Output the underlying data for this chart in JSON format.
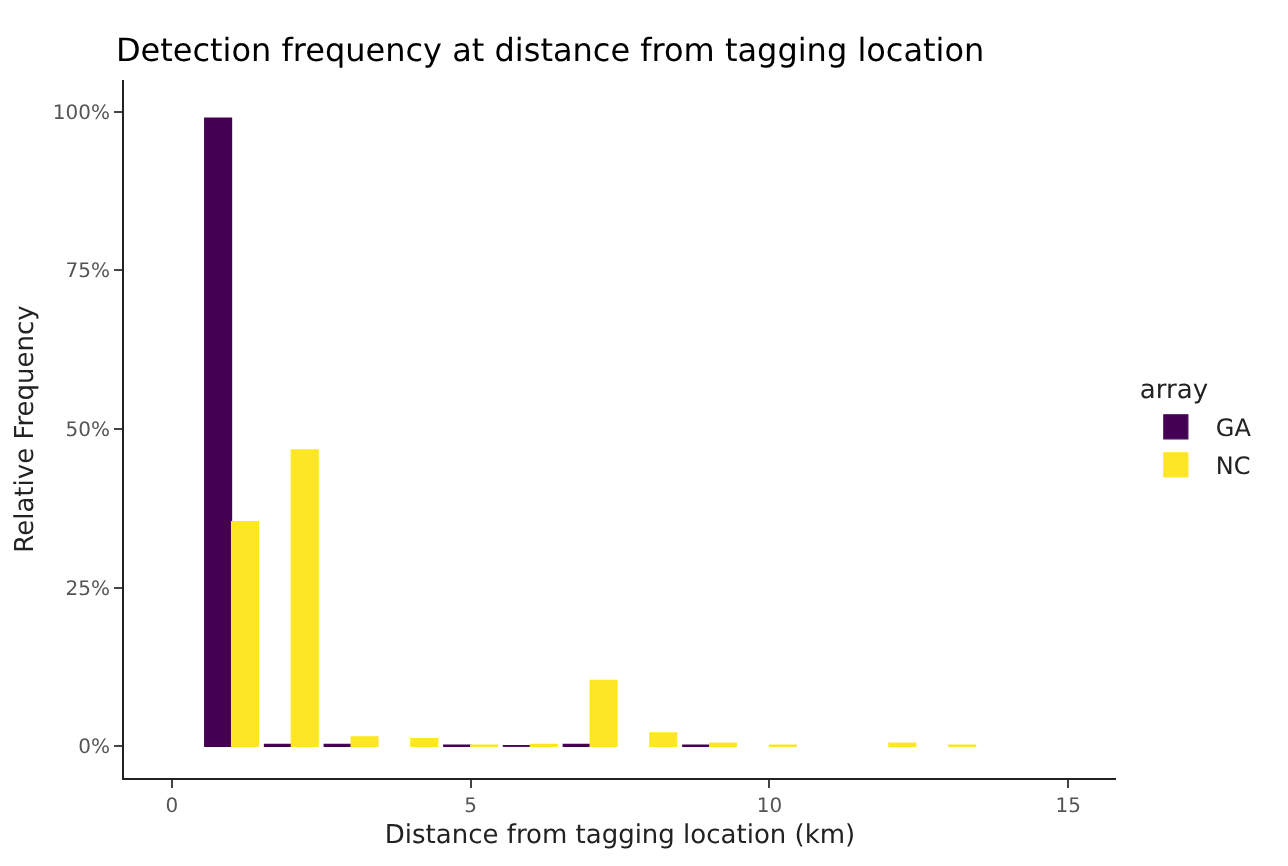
{
  "chart_data": {
    "type": "bar",
    "title": "Detection frequency at distance from tagging location",
    "xlabel": "Distance from tagging location (km)",
    "ylabel": "Relative Frequency",
    "legend_title": "array",
    "legend": "right",
    "grid": false,
    "x": [
      1,
      2,
      3,
      4,
      5,
      6,
      7,
      8,
      9,
      10,
      11,
      12,
      13
    ],
    "series": [
      {
        "name": "GA",
        "color": "#440154",
        "values": [
          99,
          0.3,
          0.3,
          null,
          0.2,
          0.1,
          0.3,
          null,
          0.2,
          null,
          null,
          null,
          null
        ]
      },
      {
        "name": "NC",
        "color": "#fde725",
        "values": [
          35.4,
          46.7,
          1.5,
          1.2,
          0.2,
          0.3,
          10.4,
          2.1,
          0.5,
          0.2,
          null,
          0.5,
          0.2
        ]
      }
    ],
    "xlim": [
      -0.8,
      15.8
    ],
    "xticks": [
      0,
      5,
      10,
      15
    ],
    "ylim": [
      -5,
      105
    ],
    "yticks": [
      {
        "value": 0,
        "label": "0%"
      },
      {
        "value": 25,
        "label": "25%"
      },
      {
        "value": 50,
        "label": "50%"
      },
      {
        "value": 75,
        "label": "75%"
      },
      {
        "value": 100,
        "label": "100%"
      }
    ]
  }
}
